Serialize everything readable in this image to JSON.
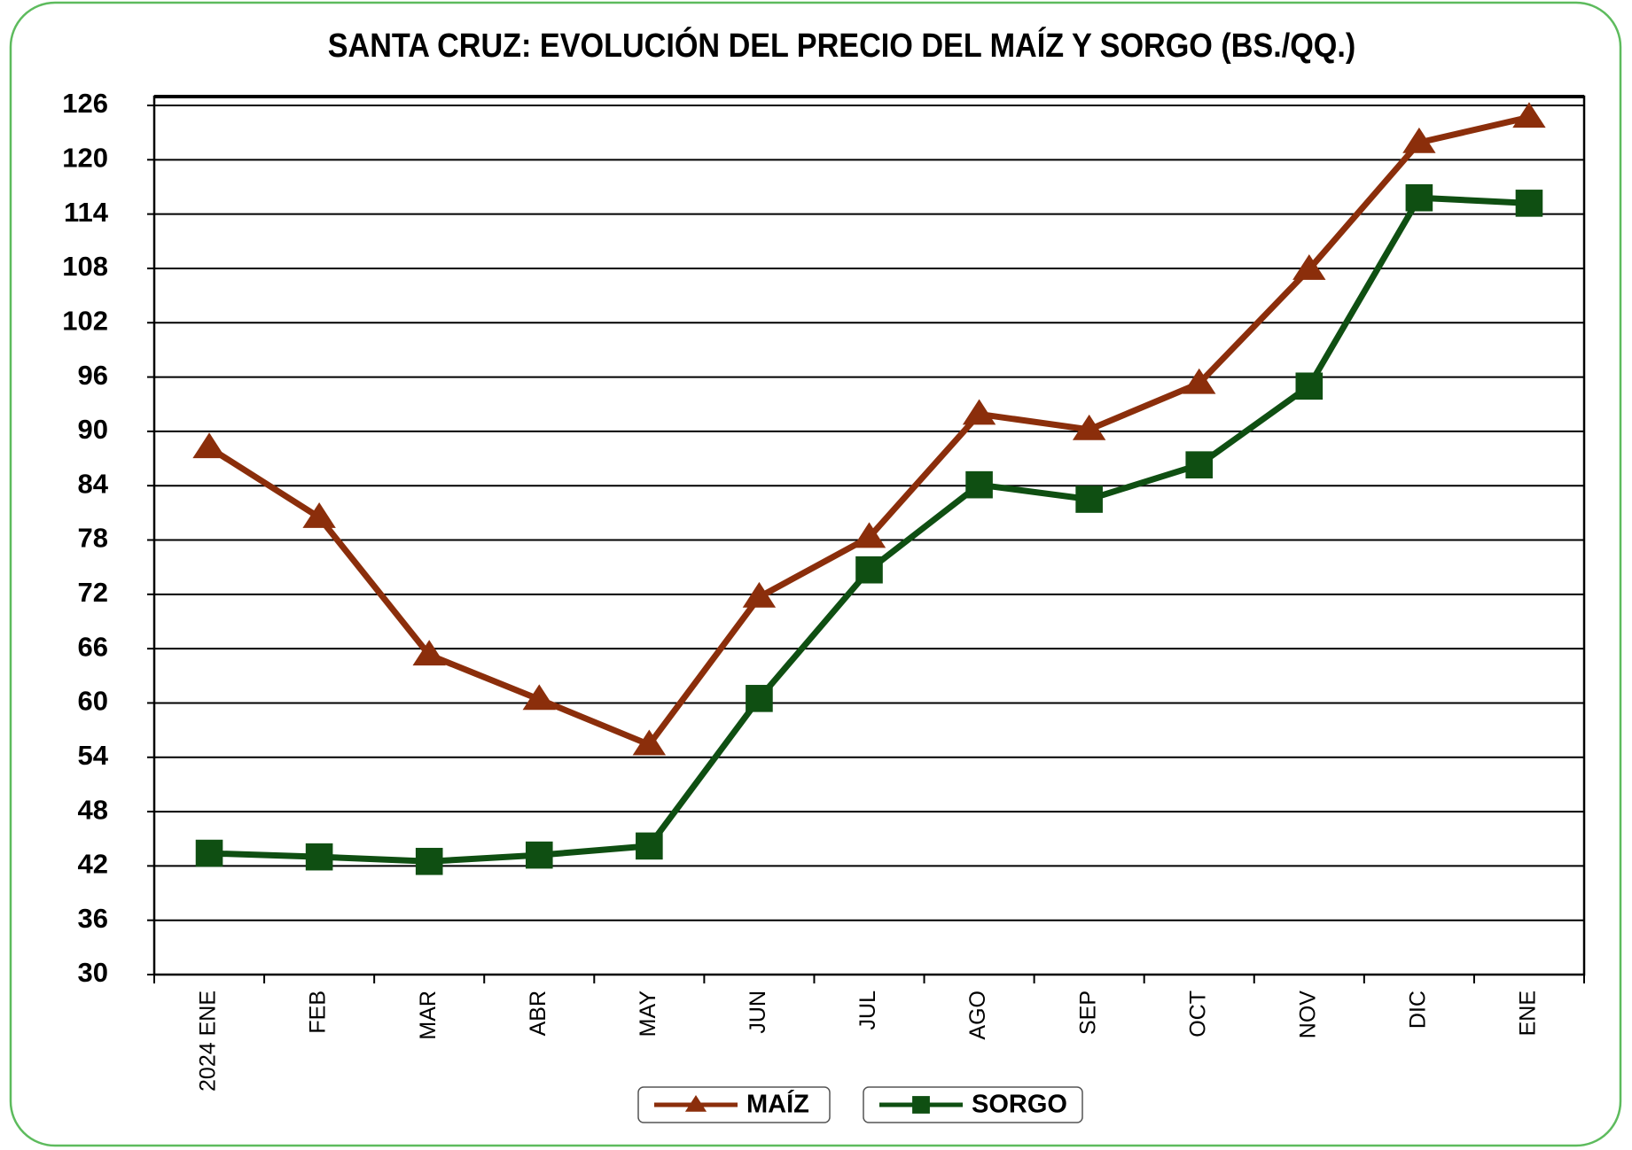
{
  "chart_data": {
    "type": "line",
    "title": "SANTA CRUZ: EVOLUCIÓN DEL PRECIO DEL MAÍZ Y SORGO (BS./QQ.)",
    "categories": [
      "2024 ENE",
      "FEB",
      "MAR",
      "ABR",
      "MAY",
      "JUN",
      "JUL",
      "AGO",
      "SEP",
      "OCT",
      "NOV",
      "DIC",
      "ENE"
    ],
    "series": [
      {
        "name": "MAÍZ",
        "color": "#8b2e0b",
        "marker": "triangle",
        "values": [
          88.2,
          80.5,
          65.3,
          60.4,
          55.4,
          71.7,
          78.3,
          91.9,
          90.2,
          95.3,
          107.9,
          121.9,
          124.7
        ]
      },
      {
        "name": "SORGO",
        "color": "#0f4f12",
        "marker": "square",
        "values": [
          43.4,
          43.0,
          42.5,
          43.2,
          44.2,
          60.5,
          74.7,
          84.1,
          82.5,
          86.3,
          95.0,
          115.8,
          115.2
        ]
      }
    ],
    "ylim": [
      30,
      126
    ],
    "yticks": [
      30,
      36,
      42,
      48,
      54,
      60,
      66,
      72,
      78,
      84,
      90,
      96,
      102,
      108,
      114,
      120,
      126
    ],
    "grid": true,
    "legend": "bottom"
  }
}
